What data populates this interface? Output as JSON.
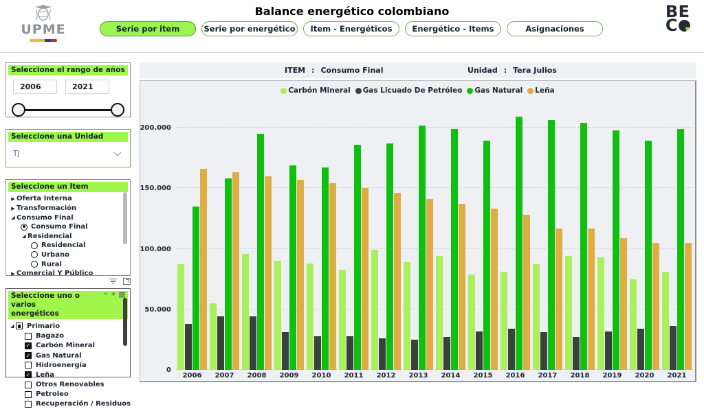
{
  "header": {
    "upme_name": "UPME",
    "title": "Balance energético colombiano",
    "tabs": [
      {
        "label": "Serie por item",
        "active": true
      },
      {
        "label": "Serie por energético",
        "active": false
      },
      {
        "label": "Item - Energéticos",
        "active": false
      },
      {
        "label": "Energético - Items",
        "active": false
      },
      {
        "label": "Asignaciones",
        "active": false
      }
    ],
    "beco_line1": "BE",
    "beco_line2": "C"
  },
  "sidebar": {
    "year_range": {
      "title": "Seleccione el rango de años",
      "start": "2006",
      "end": "2021"
    },
    "unit": {
      "title": "Seleccione una Unidad",
      "selected": "TJ"
    },
    "item": {
      "title": "Seleccione un Item",
      "tree": [
        {
          "label": "Oferta Interna",
          "level": 0,
          "glyph": "collapsed"
        },
        {
          "label": "Transformación",
          "level": 0,
          "glyph": "collapsed"
        },
        {
          "label": "Consumo Final",
          "level": 0,
          "glyph": "expanded"
        },
        {
          "label": "Consumo Final",
          "level": 1,
          "glyph": "radio-selected"
        },
        {
          "label": "Residencial",
          "level": 1,
          "glyph": "expanded"
        },
        {
          "label": "Residencial",
          "level": 2,
          "glyph": "radio"
        },
        {
          "label": "Urbano",
          "level": 2,
          "glyph": "radio"
        },
        {
          "label": "Rural",
          "level": 2,
          "glyph": "radio"
        },
        {
          "label": "Comercial Y Público",
          "level": 0,
          "glyph": "collapsed"
        }
      ]
    },
    "energetics": {
      "title_line1": "Seleccione uno o varios",
      "title_line2": "energéticos",
      "controls": {
        "collapse": "−",
        "expand": "+"
      },
      "tree": [
        {
          "label": "Primario",
          "level": 0,
          "expand": "expanded",
          "checkbox": "indeterminate"
        },
        {
          "label": "Bagazo",
          "level": 1,
          "checkbox": "unchecked"
        },
        {
          "label": "Carbón Mineral",
          "level": 1,
          "checkbox": "checked"
        },
        {
          "label": "Gas Natural",
          "level": 1,
          "checkbox": "checked"
        },
        {
          "label": "Hidroenergía",
          "level": 1,
          "checkbox": "unchecked"
        },
        {
          "label": "Leña",
          "level": 1,
          "checkbox": "checked"
        },
        {
          "label": "Otros Renovables",
          "level": 1,
          "checkbox": "unchecked"
        },
        {
          "label": "Petroleo",
          "level": 1,
          "checkbox": "unchecked"
        },
        {
          "label": "Recuperación / Residuos",
          "level": 1,
          "checkbox": "unchecked"
        }
      ]
    }
  },
  "chart_header": {
    "item_label": "ITEM",
    "item_sep": ":",
    "item_value": "Consumo Final",
    "unit_label": "Unidad",
    "unit_sep": ":",
    "unit_value": "Tera Julios"
  },
  "chart_data": {
    "type": "bar",
    "title": "",
    "xlabel": "",
    "ylabel": "",
    "unit": "TJ (Tera Julios)",
    "legend_position": "top",
    "grid": "horizontal-dotted",
    "ylim": [
      0,
      212500
    ],
    "yticks": [
      {
        "value": 0,
        "label": "0"
      },
      {
        "value": 50000,
        "label": "50.000"
      },
      {
        "value": 100000,
        "label": "100.000"
      },
      {
        "value": 150000,
        "label": "150.000"
      },
      {
        "value": 200000,
        "label": "200.000"
      }
    ],
    "categories": [
      "2006",
      "2007",
      "2008",
      "2009",
      "2010",
      "2011",
      "2012",
      "2013",
      "2014",
      "2015",
      "2016",
      "2017",
      "2018",
      "2019",
      "2020",
      "2021"
    ],
    "series": [
      {
        "name": "Carbón Mineral",
        "color": "#aaef5e",
        "values": [
          87000,
          55000,
          96000,
          90000,
          88000,
          83000,
          99000,
          89000,
          94000,
          79000,
          81000,
          87000,
          94000,
          93000,
          75000,
          81000
        ]
      },
      {
        "name": "Gas Licuado De Petróleo",
        "color": "#38423a",
        "values": [
          38000,
          44000,
          44000,
          31000,
          28000,
          28000,
          26000,
          25000,
          27000,
          32000,
          34000,
          31000,
          27000,
          32000,
          34000,
          36000
        ]
      },
      {
        "name": "Gas Natural",
        "color": "#10c011",
        "values": [
          135000,
          158000,
          195000,
          169000,
          167000,
          186000,
          187000,
          202000,
          199000,
          189000,
          209000,
          206000,
          204000,
          198000,
          189000,
          199000
        ]
      },
      {
        "name": "Leña",
        "color": "#dead43",
        "values": [
          166000,
          163000,
          160000,
          157000,
          154000,
          150000,
          146000,
          141000,
          137000,
          133000,
          128000,
          117000,
          117000,
          109000,
          105000,
          105000
        ]
      }
    ]
  }
}
